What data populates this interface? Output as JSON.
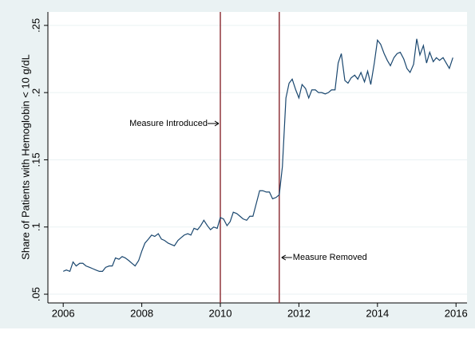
{
  "chart_data": {
    "type": "line",
    "y_label": "Share of Patients with Hemoglobin < 10 g/dL",
    "x": [
      2006,
      2006.08,
      2006.17,
      2006.25,
      2006.33,
      2006.42,
      2006.5,
      2006.58,
      2006.67,
      2006.75,
      2006.83,
      2006.92,
      2007,
      2007.08,
      2007.17,
      2007.25,
      2007.33,
      2007.42,
      2007.5,
      2007.58,
      2007.67,
      2007.75,
      2007.83,
      2007.92,
      2008,
      2008.08,
      2008.17,
      2008.25,
      2008.33,
      2008.42,
      2008.5,
      2008.58,
      2008.67,
      2008.75,
      2008.83,
      2008.92,
      2009,
      2009.08,
      2009.17,
      2009.25,
      2009.33,
      2009.42,
      2009.5,
      2009.58,
      2009.67,
      2009.75,
      2009.83,
      2009.92,
      2010,
      2010.08,
      2010.17,
      2010.25,
      2010.33,
      2010.42,
      2010.5,
      2010.58,
      2010.67,
      2010.75,
      2010.83,
      2010.92,
      2011,
      2011.08,
      2011.17,
      2011.25,
      2011.33,
      2011.42,
      2011.5,
      2011.58,
      2011.67,
      2011.75,
      2011.83,
      2011.92,
      2012,
      2012.08,
      2012.17,
      2012.25,
      2012.33,
      2012.42,
      2012.5,
      2012.58,
      2012.67,
      2012.75,
      2012.83,
      2012.92,
      2013,
      2013.08,
      2013.17,
      2013.25,
      2013.33,
      2013.42,
      2013.5,
      2013.58,
      2013.67,
      2013.75,
      2013.83,
      2013.92,
      2014,
      2014.08,
      2014.17,
      2014.25,
      2014.33,
      2014.42,
      2014.5,
      2014.58,
      2014.67,
      2014.75,
      2014.83,
      2014.92,
      2015,
      2015.08,
      2015.17,
      2015.25,
      2015.33,
      2015.42,
      2015.5,
      2015.58,
      2015.67,
      2015.75,
      2015.83,
      2015.92
    ],
    "series": [
      {
        "color": "#1a476f",
        "values": [
          0.067,
          0.068,
          0.067,
          0.074,
          0.071,
          0.073,
          0.073,
          0.071,
          0.07,
          0.069,
          0.068,
          0.067,
          0.067,
          0.07,
          0.071,
          0.071,
          0.077,
          0.076,
          0.078,
          0.077,
          0.075,
          0.073,
          0.071,
          0.075,
          0.082,
          0.088,
          0.091,
          0.094,
          0.093,
          0.095,
          0.091,
          0.09,
          0.088,
          0.087,
          0.086,
          0.09,
          0.092,
          0.094,
          0.095,
          0.094,
          0.099,
          0.098,
          0.101,
          0.105,
          0.101,
          0.098,
          0.1,
          0.099,
          0.107,
          0.106,
          0.101,
          0.104,
          0.111,
          0.11,
          0.108,
          0.106,
          0.105,
          0.108,
          0.108,
          0.118,
          0.127,
          0.127,
          0.126,
          0.126,
          0.121,
          0.122,
          0.124,
          0.145,
          0.196,
          0.207,
          0.21,
          0.202,
          0.196,
          0.206,
          0.203,
          0.196,
          0.202,
          0.202,
          0.2,
          0.2,
          0.199,
          0.2,
          0.202,
          0.202,
          0.222,
          0.229,
          0.209,
          0.207,
          0.211,
          0.213,
          0.21,
          0.215,
          0.208,
          0.216,
          0.206,
          0.222,
          0.239,
          0.236,
          0.229,
          0.224,
          0.22,
          0.226,
          0.229,
          0.23,
          0.225,
          0.218,
          0.215,
          0.221,
          0.24,
          0.228,
          0.235,
          0.222,
          0.23,
          0.223,
          0.226,
          0.224,
          0.226,
          0.222,
          0.218,
          0.226
        ]
      }
    ],
    "xlim": [
      2005.61,
      2016.28
    ],
    "xticks": [
      2006,
      2008,
      2010,
      2012,
      2014,
      2016
    ],
    "ylim": [
      0.0435,
      0.26
    ],
    "yticks": [
      {
        "value": 0.05,
        "label": ".05"
      },
      {
        "value": 0.1,
        "label": ".1"
      },
      {
        "value": 0.15,
        "label": ".15"
      },
      {
        "value": 0.2,
        "label": ".2"
      },
      {
        "value": 0.25,
        "label": ".25"
      }
    ],
    "grid": true,
    "vlines": [
      {
        "x": 2010,
        "color": "#90353b"
      },
      {
        "x": 2011.5,
        "color": "#90353b"
      }
    ],
    "annotations": [
      {
        "text": "Measure Introduced",
        "x": 2010,
        "y": 0.177,
        "side": "left"
      },
      {
        "text": "Measure Removed",
        "x": 2011.5,
        "y": 0.0773,
        "side": "right"
      }
    ]
  }
}
